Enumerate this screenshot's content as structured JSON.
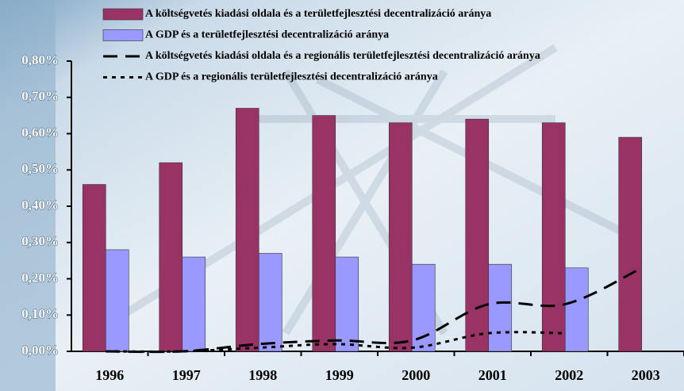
{
  "chart_data": {
    "type": "bar",
    "categories": [
      "1996",
      "1997",
      "1998",
      "1999",
      "2000",
      "2001",
      "2002",
      "2003"
    ],
    "series": [
      {
        "name": "A költségvetés kiadási oldala és a területfejlesztési decentralizáció aránya",
        "type": "bar",
        "color": "#993366",
        "values": [
          0.46,
          0.52,
          0.67,
          0.65,
          0.63,
          0.64,
          0.63,
          0.59
        ]
      },
      {
        "name": "A GDP és a területfejlesztési decentralizáció aránya",
        "type": "bar",
        "color": "#9999ff",
        "values": [
          0.28,
          0.26,
          0.27,
          0.26,
          0.24,
          0.24,
          0.23,
          null
        ]
      },
      {
        "name": "A költségvetés kiadási oldala és a regionális területfejlesztési decentralizáció aránya",
        "type": "line",
        "dash": "dashed",
        "color": "#000000",
        "values": [
          0.0,
          0.0,
          0.02,
          0.03,
          0.03,
          0.13,
          0.13,
          0.23
        ]
      },
      {
        "name": "A GDP és a regionális területfejlesztési decentralizáció aránya",
        "type": "line",
        "dash": "dotted",
        "color": "#000000",
        "values": [
          0.0,
          0.0,
          0.01,
          0.02,
          0.01,
          0.05,
          0.05,
          null
        ]
      }
    ],
    "ylim": [
      0,
      0.8
    ],
    "yticks": [
      {
        "value": 0,
        "label": "0,00%"
      },
      {
        "value": 0.1,
        "label": "0,10%"
      },
      {
        "value": 0.2,
        "label": "0,20%"
      },
      {
        "value": 0.3,
        "label": "0,30%"
      },
      {
        "value": 0.4,
        "label": "0,40%"
      },
      {
        "value": 0.5,
        "label": "0,50%"
      },
      {
        "value": 0.6,
        "label": "0,60%"
      },
      {
        "value": 0.7,
        "label": "0,70%"
      },
      {
        "value": 0.8,
        "label": "0,80%"
      }
    ],
    "legend": "top"
  }
}
